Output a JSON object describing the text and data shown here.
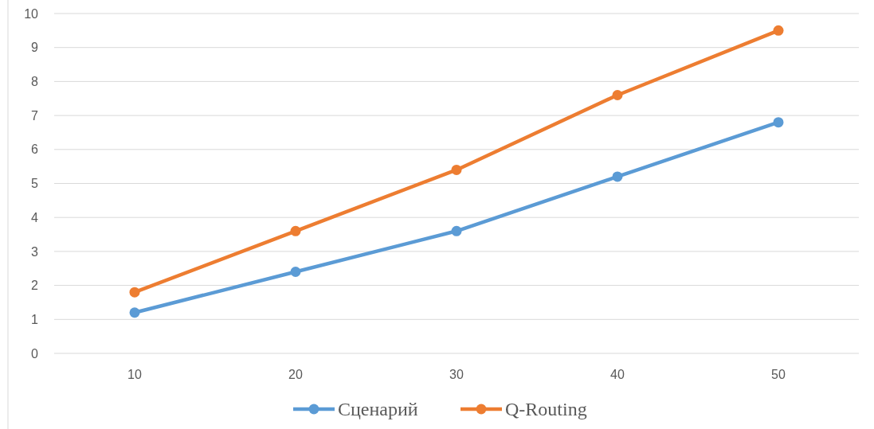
{
  "chart_data": {
    "type": "line",
    "categories": [
      "10",
      "20",
      "30",
      "40",
      "50"
    ],
    "series": [
      {
        "name": "Сценарий",
        "color": "#5b9bd5",
        "values": [
          1.2,
          2.4,
          3.6,
          5.2,
          6.8
        ]
      },
      {
        "name": "Q-Routing",
        "color": "#ed7d31",
        "values": [
          1.8,
          3.6,
          5.4,
          7.6,
          9.5
        ]
      }
    ],
    "ylim": [
      0,
      10
    ],
    "yticks": [
      0,
      1,
      2,
      3,
      4,
      5,
      6,
      7,
      8,
      9,
      10
    ],
    "grid": "y",
    "legend": "bottom",
    "marker": "circle",
    "line_style": "solid"
  }
}
